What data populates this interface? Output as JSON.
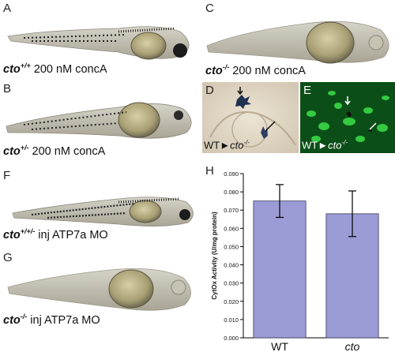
{
  "panels": {
    "A": {
      "letter": "A",
      "genotype": "cto",
      "sup": "+/+",
      "treatment": "200 nM concA"
    },
    "B": {
      "letter": "B",
      "genotype": "cto",
      "sup": "+/-",
      "treatment": "200 nM concA"
    },
    "C": {
      "letter": "C",
      "genotype": "cto",
      "sup": "-/-",
      "treatment": "200 nM concA"
    },
    "D": {
      "letter": "D",
      "donor": "WT",
      "host": "cto",
      "host_sup": "-/-"
    },
    "E": {
      "letter": "E",
      "donor": "WT",
      "host": "cto",
      "host_sup": "-/-"
    },
    "F": {
      "letter": "F",
      "genotype": "cto",
      "sup": "+/+/-",
      "treatment": "inj ATP7a MO"
    },
    "G": {
      "letter": "G",
      "genotype": "cto",
      "sup": "-/-",
      "treatment": "inj ATP7a MO"
    },
    "H": {
      "letter": "H"
    }
  },
  "colors": {
    "bar": "#9b9bd6",
    "bar_edge": "#3a3a55",
    "fluor_bg": "#0f5a1c",
    "fluor_spot": "#3be04a"
  },
  "chart_data": {
    "type": "bar",
    "categories": [
      "WT",
      "cto"
    ],
    "values": [
      0.075,
      0.068
    ],
    "errors": [
      0.009,
      0.0125
    ],
    "ylabel": "CytOx Activity (U/mg protein)",
    "xlabel": "",
    "ylim": [
      0,
      0.09
    ],
    "yticks": [
      "0.000",
      "0.010",
      "0.020",
      "0.030",
      "0.040",
      "0.050",
      "0.060",
      "0.070",
      "0.080",
      "0.090"
    ],
    "grid": false
  }
}
